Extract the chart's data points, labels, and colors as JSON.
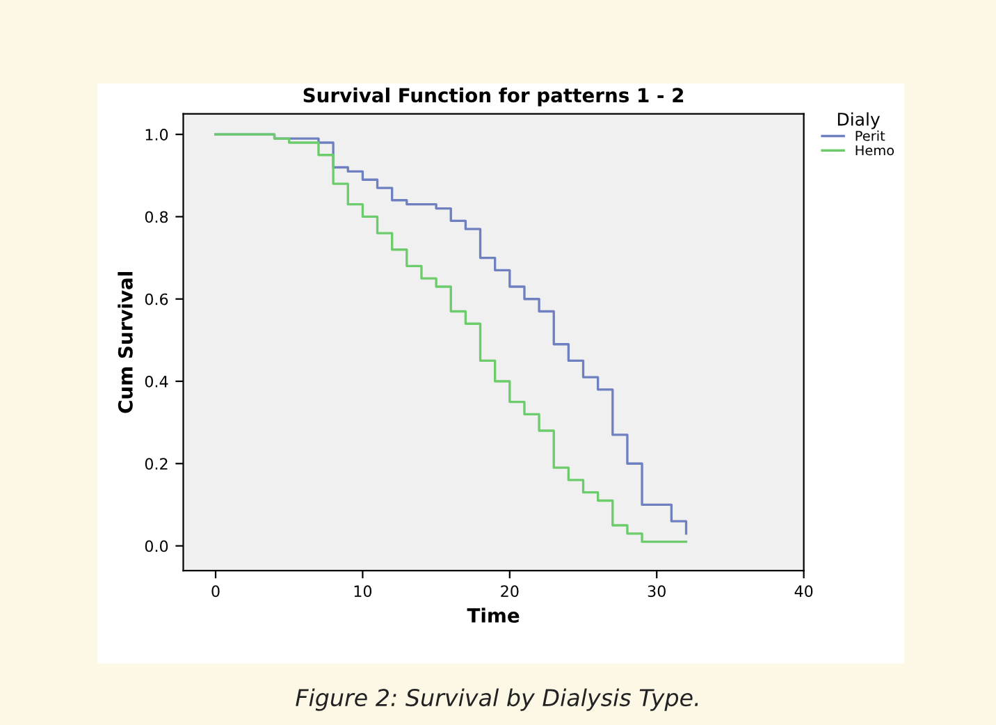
{
  "chart_data": {
    "type": "step",
    "title": "Survival Function for patterns 1 - 2",
    "xlabel": "Time",
    "ylabel": "Cum Survival",
    "legend_title": "Dialy",
    "legend": "right",
    "grid": false,
    "xlim": [
      -2.2,
      40
    ],
    "xticks": [
      0,
      10,
      20,
      30,
      40
    ],
    "ylim": [
      -0.06,
      1.05
    ],
    "yticks": [
      {
        "value": 0,
        "label": "0.0"
      },
      {
        "value": 0.2,
        "label": "0.2"
      },
      {
        "value": 0.4,
        "label": "0.4"
      },
      {
        "value": 0.6,
        "label": "0.6"
      },
      {
        "value": 0.8,
        "label": "0.8"
      },
      {
        "value": 1,
        "label": "1.0"
      }
    ],
    "annotations": [
      "Figure 2: Survival by Dialysis Type."
    ],
    "series": [
      {
        "name": "Perit",
        "color": "#6f80c0",
        "x": [
          0,
          4,
          7,
          8,
          9,
          10,
          11,
          12,
          13,
          14,
          15,
          16,
          17,
          18,
          19,
          20,
          21,
          22,
          23,
          24,
          25,
          26,
          27,
          28,
          29,
          31,
          32
        ],
        "values": [
          1.0,
          0.99,
          0.98,
          0.92,
          0.91,
          0.89,
          0.87,
          0.84,
          0.83,
          0.83,
          0.82,
          0.79,
          0.77,
          0.7,
          0.67,
          0.63,
          0.6,
          0.57,
          0.49,
          0.45,
          0.41,
          0.38,
          0.27,
          0.2,
          0.1,
          0.06,
          0.03
        ]
      },
      {
        "name": "Hemo",
        "color": "#6ccc6c",
        "x": [
          0,
          4,
          5,
          7,
          8,
          9,
          10,
          11,
          12,
          13,
          14,
          15,
          16,
          17,
          18,
          19,
          20,
          21,
          22,
          23,
          24,
          25,
          26,
          27,
          28,
          29,
          31,
          32
        ],
        "values": [
          1.0,
          0.99,
          0.98,
          0.95,
          0.88,
          0.83,
          0.8,
          0.76,
          0.72,
          0.68,
          0.65,
          0.63,
          0.57,
          0.54,
          0.45,
          0.4,
          0.35,
          0.32,
          0.28,
          0.19,
          0.16,
          0.13,
          0.11,
          0.05,
          0.03,
          0.01,
          0.01,
          0.01
        ]
      }
    ]
  }
}
